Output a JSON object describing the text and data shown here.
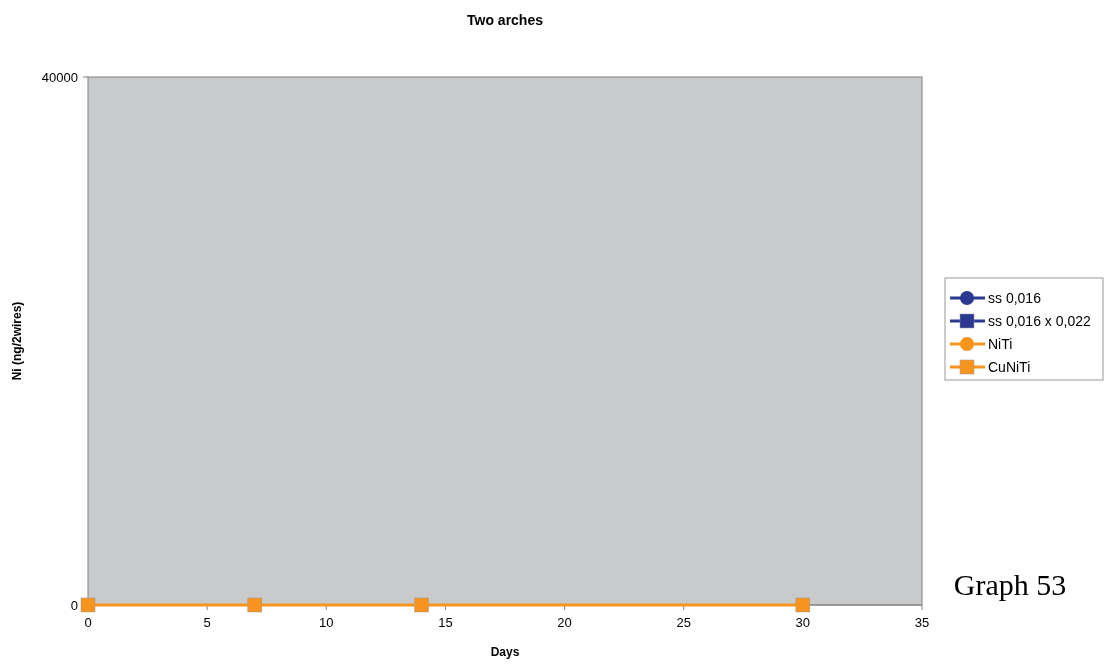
{
  "chart_data": {
    "type": "line",
    "title": "Two arches",
    "xlabel": "Days",
    "ylabel": "Ni (ng/2wires)",
    "x": [
      0,
      7,
      14,
      30
    ],
    "series": [
      {
        "color": "#f15a24",
        "marker": "circle",
        "values": [
          null,
          null,
          null,
          null
        ]
      },
      {
        "color": "#f15a24",
        "marker": "square",
        "values": [
          null,
          null,
          null,
          null
        ]
      },
      {
        "name": "ss 0,016",
        "color": "#2b3990",
        "marker": "circle",
        "values": [
          null,
          null,
          null,
          null
        ]
      },
      {
        "name": "ss 0,016 x 0,022",
        "color": "#2b3990",
        "marker": "square",
        "values": [
          null,
          null,
          null,
          null
        ]
      },
      {
        "name": "NiTi",
        "color": "#f7941d",
        "marker": "circle",
        "values": [
          null,
          null,
          null,
          null
        ]
      },
      {
        "name": "CuNiTi",
        "color": "#f7941d",
        "marker": "square",
        "values": [
          0,
          0,
          0,
          0
        ]
      }
    ],
    "xlim": [
      0,
      35
    ],
    "xticks": [
      0,
      5,
      10,
      15,
      20,
      25,
      30,
      35
    ],
    "ylim": [
      0,
      40000
    ],
    "yticks": [
      0,
      40000
    ],
    "grid": false,
    "legend": "right",
    "annotations": [
      "Graph 53"
    ]
  }
}
